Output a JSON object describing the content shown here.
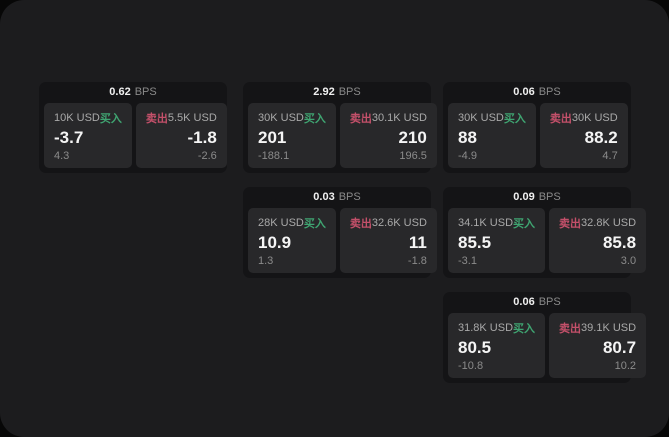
{
  "labels": {
    "buy": "买入",
    "sell": "卖出",
    "bps_unit": "BPS"
  },
  "colors": {
    "buy_green": "#3fa471",
    "sell_red": "#c4506a",
    "window_bg": "#1c1c1e",
    "card_bg": "#141416",
    "panel_bg": "#28282a",
    "price_text": "#f5f5f5",
    "muted_text": "#8b8b8b"
  },
  "cards": [
    {
      "spread_bps": "0.62",
      "buy": {
        "notional": "10K USD",
        "price": "-3.7",
        "delta": "4.3"
      },
      "sell": {
        "notional": "5.5K USD",
        "price": "-1.8",
        "delta": "-2.6"
      }
    },
    {
      "spread_bps": "2.92",
      "buy": {
        "notional": "30K USD",
        "price": "201",
        "delta": "-188.1"
      },
      "sell": {
        "notional": "30.1K USD",
        "price": "210",
        "delta": "196.5"
      }
    },
    {
      "spread_bps": "0.06",
      "buy": {
        "notional": "30K USD",
        "price": "88",
        "delta": "-4.9"
      },
      "sell": {
        "notional": "30K USD",
        "price": "88.2",
        "delta": "4.7"
      }
    },
    {
      "spread_bps": "0.03",
      "buy": {
        "notional": "28K USD",
        "price": "10.9",
        "delta": "1.3"
      },
      "sell": {
        "notional": "32.6K USD",
        "price": "11",
        "delta": "-1.8"
      }
    },
    {
      "spread_bps": "0.09",
      "buy": {
        "notional": "34.1K USD",
        "price": "85.5",
        "delta": "-3.1"
      },
      "sell": {
        "notional": "32.8K USD",
        "price": "85.8",
        "delta": "3.0"
      }
    },
    {
      "spread_bps": "0.06",
      "buy": {
        "notional": "31.8K USD",
        "price": "80.5",
        "delta": "-10.8"
      },
      "sell": {
        "notional": "39.1K USD",
        "price": "80.7",
        "delta": "10.2"
      }
    }
  ]
}
